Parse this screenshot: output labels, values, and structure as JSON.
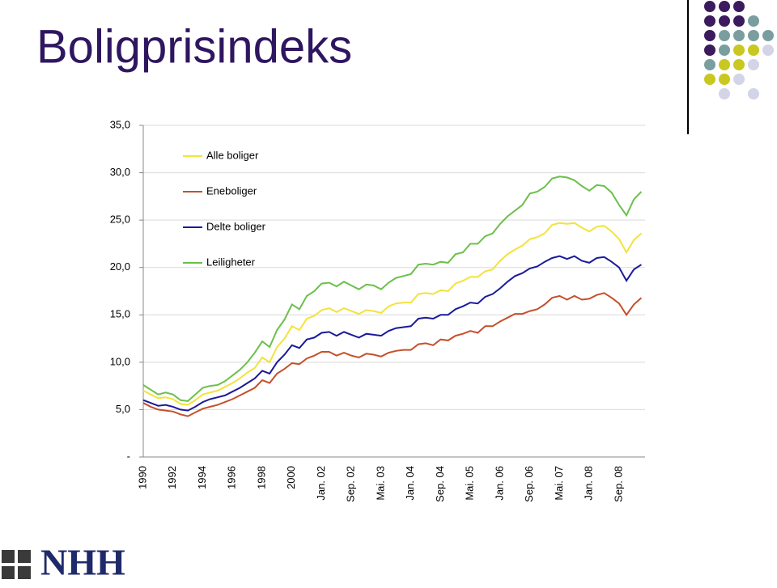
{
  "chart_data": {
    "type": "line",
    "title": "Boligprisindeks",
    "categories": [
      "1990",
      null,
      null,
      null,
      "1992",
      null,
      null,
      null,
      "1994",
      null,
      null,
      null,
      "1996",
      null,
      null,
      null,
      "1998",
      null,
      null,
      null,
      "2000",
      null,
      null,
      null,
      "Jan. 02",
      null,
      null,
      null,
      "Sep. 02",
      null,
      null,
      null,
      "Mai. 03",
      null,
      null,
      null,
      "Jan. 04",
      null,
      null,
      null,
      "Sep. 04",
      null,
      null,
      null,
      "Mai. 05",
      null,
      null,
      null,
      "Jan. 06",
      null,
      null,
      null,
      "Sep. 06",
      null,
      null,
      null,
      "Mai. 07",
      null,
      null,
      null,
      "Jan. 08",
      null,
      null,
      null,
      "Sep. 08",
      null,
      null,
      null
    ],
    "series": [
      {
        "name": "Alle boliger",
        "color": "#f2e33a",
        "values": [
          7.0,
          6.6,
          6.2,
          6.3,
          6.1,
          5.6,
          5.5,
          6.0,
          6.6,
          6.8,
          7.0,
          7.4,
          7.8,
          8.3,
          8.9,
          9.4,
          10.5,
          10.0,
          11.6,
          12.5,
          13.8,
          13.4,
          14.6,
          14.9,
          15.5,
          15.7,
          15.3,
          15.7,
          15.4,
          15.1,
          15.5,
          15.4,
          15.2,
          15.9,
          16.2,
          16.3,
          16.3,
          17.2,
          17.3,
          17.2,
          17.6,
          17.5,
          18.3,
          18.6,
          19.0,
          19.0,
          19.6,
          19.8,
          20.7,
          21.4,
          21.9,
          22.3,
          23.0,
          23.2,
          23.6,
          24.5,
          24.7,
          24.6,
          24.7,
          24.2,
          23.8,
          24.3,
          24.4,
          23.8,
          23.0,
          21.6,
          22.9,
          23.6
        ]
      },
      {
        "name": "Eneboliger",
        "color": "#c4502b",
        "values": [
          5.7,
          5.3,
          5.0,
          4.9,
          4.8,
          4.5,
          4.3,
          4.7,
          5.1,
          5.3,
          5.5,
          5.8,
          6.1,
          6.5,
          6.9,
          7.3,
          8.1,
          7.8,
          8.8,
          9.3,
          9.9,
          9.8,
          10.4,
          10.7,
          11.1,
          11.1,
          10.7,
          11.0,
          10.7,
          10.5,
          10.9,
          10.8,
          10.6,
          11.0,
          11.2,
          11.3,
          11.3,
          11.9,
          12.0,
          11.8,
          12.4,
          12.3,
          12.8,
          13.0,
          13.3,
          13.1,
          13.8,
          13.8,
          14.3,
          14.7,
          15.1,
          15.1,
          15.4,
          15.6,
          16.1,
          16.8,
          17.0,
          16.6,
          17.0,
          16.6,
          16.7,
          17.1,
          17.3,
          16.8,
          16.2,
          15.0,
          16.1,
          16.8
        ]
      },
      {
        "name": "Delte boliger",
        "color": "#1a1a9a",
        "values": [
          6.0,
          5.7,
          5.4,
          5.5,
          5.3,
          5.0,
          4.9,
          5.3,
          5.8,
          6.1,
          6.3,
          6.5,
          6.9,
          7.3,
          7.8,
          8.3,
          9.1,
          8.8,
          10.0,
          10.8,
          11.8,
          11.5,
          12.4,
          12.6,
          13.1,
          13.2,
          12.8,
          13.2,
          12.9,
          12.6,
          13.0,
          12.9,
          12.8,
          13.3,
          13.6,
          13.7,
          13.8,
          14.6,
          14.7,
          14.6,
          15.0,
          15.0,
          15.6,
          15.9,
          16.3,
          16.2,
          16.9,
          17.2,
          17.8,
          18.5,
          19.1,
          19.4,
          19.9,
          20.1,
          20.6,
          21.0,
          21.2,
          20.9,
          21.2,
          20.7,
          20.5,
          21.0,
          21.1,
          20.6,
          20.0,
          18.6,
          19.8,
          20.3
        ]
      },
      {
        "name": "Leiligheter",
        "color": "#6cc04a",
        "values": [
          7.6,
          7.1,
          6.6,
          6.8,
          6.6,
          6.0,
          5.9,
          6.6,
          7.3,
          7.5,
          7.6,
          8.0,
          8.6,
          9.2,
          10.0,
          11.0,
          12.2,
          11.6,
          13.4,
          14.5,
          16.1,
          15.6,
          17.0,
          17.5,
          18.3,
          18.4,
          18.0,
          18.5,
          18.1,
          17.7,
          18.2,
          18.1,
          17.7,
          18.4,
          18.9,
          19.1,
          19.3,
          20.3,
          20.4,
          20.3,
          20.6,
          20.5,
          21.4,
          21.6,
          22.5,
          22.5,
          23.3,
          23.6,
          24.6,
          25.4,
          26.0,
          26.6,
          27.8,
          28.0,
          28.5,
          29.4,
          29.6,
          29.5,
          29.2,
          28.6,
          28.1,
          28.7,
          28.6,
          27.9,
          26.6,
          25.5,
          27.2,
          28.0
        ]
      }
    ],
    "ylim": [
      0,
      35
    ],
    "yticks": [
      {
        "value": 0,
        "label": "-"
      },
      {
        "value": 5,
        "label": "5,0"
      },
      {
        "value": 10,
        "label": "10,0"
      },
      {
        "value": 15,
        "label": "15,0"
      },
      {
        "value": 20,
        "label": "20,0"
      },
      {
        "value": 25,
        "label": "25,0"
      },
      {
        "value": 30,
        "label": "30,0"
      },
      {
        "value": 35,
        "label": "35,0"
      }
    ],
    "grid": true
  },
  "logo": {
    "text": "NHH"
  }
}
